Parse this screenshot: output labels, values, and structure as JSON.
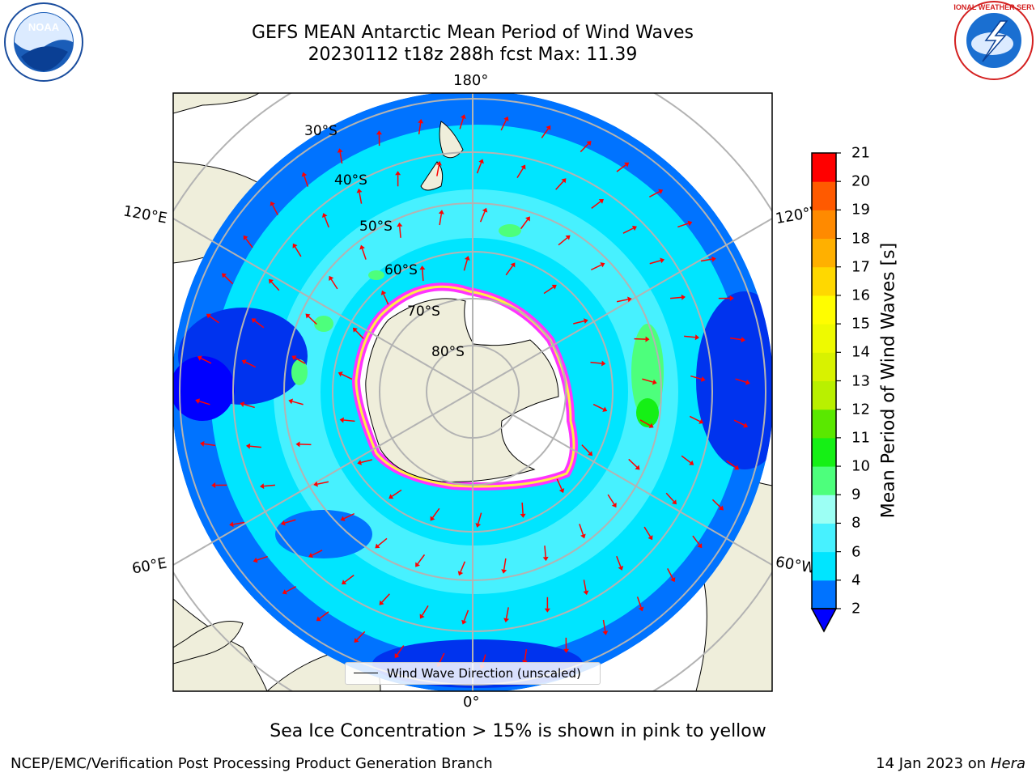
{
  "title_line1": "GEFS MEAN Antarctic Mean Period of Wind Waves",
  "title_line2": "20230112 t18z 288h fcst   Max: 11.39",
  "subtitle": "Sea Ice Concentration > 15% is shown in pink to yellow",
  "footer_left": "NCEP/EMC/Verification Post Processing Product Generation Branch",
  "footer_right_prefix": "14 Jan 2023 on",
  "footer_right_host": "Hera",
  "logos": {
    "noaa_text": "NOAA",
    "nws_text": "NATIONAL WEATHER SERVICE"
  },
  "map": {
    "projection": "south polar stereographic",
    "lon_labels": {
      "top": "180°",
      "bottom": "0°",
      "upper_left": "120°E",
      "upper_right": "120°W",
      "lower_left": "60°E",
      "lower_right": "60°W"
    },
    "lat_labels": [
      "30°S",
      "40°S",
      "50°S",
      "60°S",
      "70°S",
      "80°S"
    ],
    "legend_label": "Wind Wave Direction (unscaled)"
  },
  "colorbar": {
    "label": "Mean Period of Wind Waves [s]",
    "ticks": [
      "2",
      "4",
      "6",
      "8",
      "9",
      "10",
      "11",
      "12",
      "13",
      "14",
      "15",
      "16",
      "17",
      "18",
      "19",
      "20",
      "21"
    ],
    "colors": [
      "#0073ff",
      "#00e5ff",
      "#47f1ff",
      "#9cfff4",
      "#4dff7c",
      "#15f015",
      "#5ae800",
      "#b9f000",
      "#d8f200",
      "#eefa00",
      "#fffd00",
      "#ffd800",
      "#ffb000",
      "#ff8a00",
      "#ff5a00",
      "#ff0000"
    ],
    "under_color": "#0000ff"
  },
  "colors": {
    "ocean_deep": "#0033ee",
    "ocean_blue": "#0073ff",
    "ocean_cyan": "#00e5ff",
    "ocean_light": "#47f1ff",
    "land": "#efeedb",
    "ice_pink": "#ff33ff",
    "ice_yellow": "#ffee44",
    "arrow": "#ff0000",
    "grid": "#b3b3b3"
  }
}
